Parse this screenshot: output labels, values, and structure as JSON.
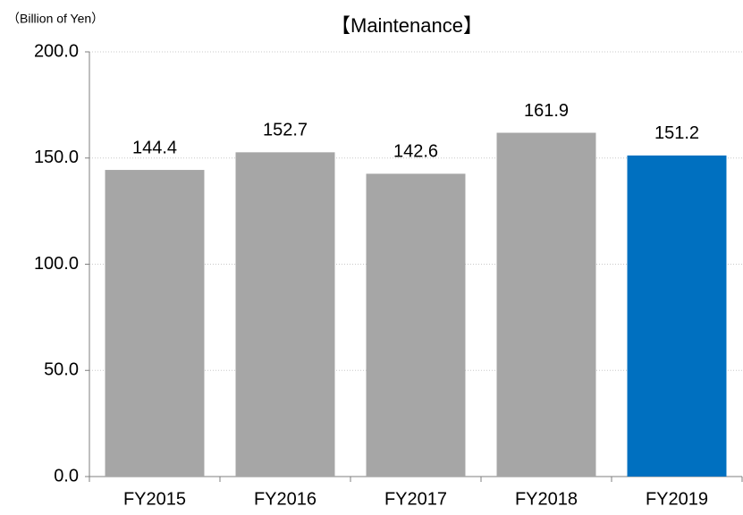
{
  "chart_data": {
    "type": "bar",
    "title": "【Maintenance】",
    "y_label": "（Billion of Yen）",
    "categories": [
      "FY2015",
      "FY2016",
      "FY2017",
      "FY2018",
      "FY2019"
    ],
    "values": [
      144.4,
      152.7,
      142.6,
      161.9,
      151.2
    ],
    "colors": [
      "#a6a6a6",
      "#a6a6a6",
      "#a6a6a6",
      "#a6a6a6",
      "#0070c0"
    ],
    "ylim": [
      0,
      200
    ],
    "yticks": [
      {
        "value": 0,
        "label": "0.0"
      },
      {
        "value": 50,
        "label": "50.0"
      },
      {
        "value": 100,
        "label": "100.0"
      },
      {
        "value": 150,
        "label": "150.0"
      },
      {
        "value": 200,
        "label": "200.0"
      }
    ],
    "grid": true
  }
}
